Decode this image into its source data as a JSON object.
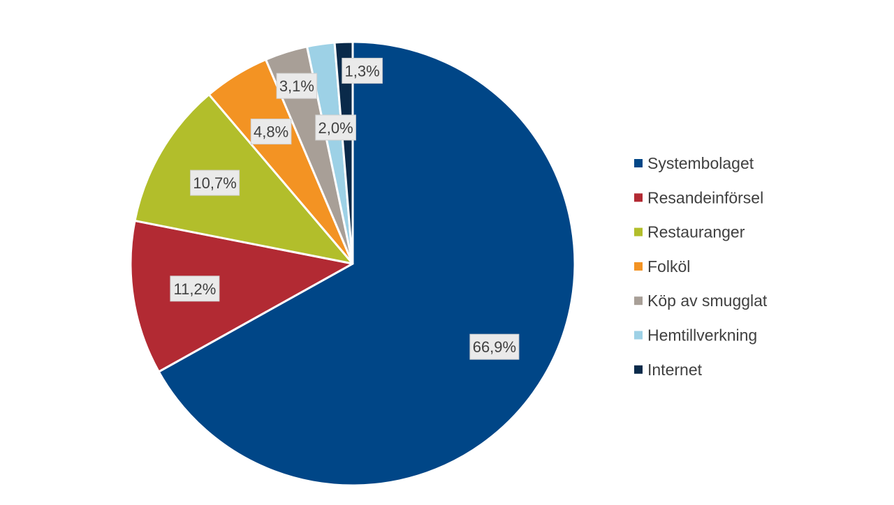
{
  "chart_data": {
    "type": "pie",
    "title": "",
    "number_format": "comma-decimal-one",
    "legend_position": "right",
    "start_angle_deg": 0,
    "direction": "clockwise",
    "slices": [
      {
        "name": "Systembolaget",
        "value": 66.9,
        "label": "66,9%",
        "color": "#004687"
      },
      {
        "name": "Resandeinförsel",
        "value": 11.2,
        "label": "11,2%",
        "color": "#B22A33"
      },
      {
        "name": "Restauranger",
        "value": 10.7,
        "label": "10,7%",
        "color": "#B2BE2B"
      },
      {
        "name": "Folköl",
        "value": 4.8,
        "label": "4,8%",
        "color": "#F39323"
      },
      {
        "name": "Köp av smugglat",
        "value": 3.1,
        "label": "3,1%",
        "color": "#A89F97"
      },
      {
        "name": "Hemtillverkning",
        "value": 2.0,
        "label": "2,0%",
        "color": "#9DD1E6"
      },
      {
        "name": "Internet",
        "value": 1.3,
        "label": "1,3%",
        "color": "#0A2A4A"
      }
    ]
  },
  "style": {
    "slice_border_color": "#ffffff",
    "label_box_fill": "#eaeaea",
    "label_box_stroke": "#cfcfcf",
    "text_color": "#404040"
  }
}
